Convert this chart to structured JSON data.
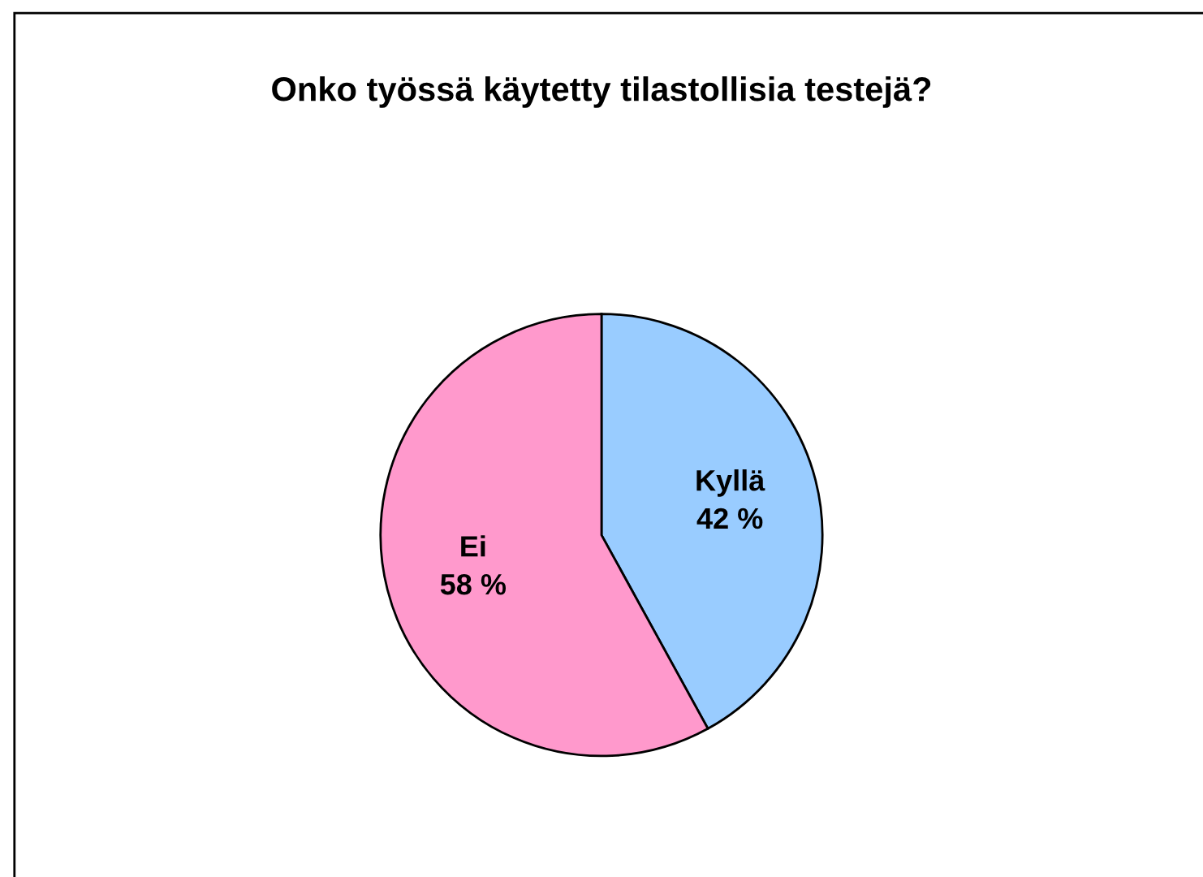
{
  "chart_data": {
    "type": "pie",
    "title": "Onko työssä käytetty tilastollisia testejä?",
    "categories": [
      "Kyllä",
      "Ei"
    ],
    "values": [
      42,
      58
    ],
    "colors": [
      "#99ccff",
      "#ff99cc"
    ],
    "value_labels": [
      "42 %",
      "58 %"
    ],
    "legend": false
  }
}
